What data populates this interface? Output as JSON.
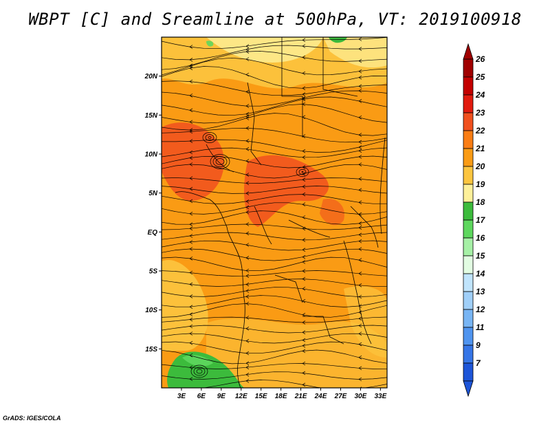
{
  "title": "WBPT [C] and Sreamline at 500hPa, VT: 2019100918",
  "credit": "GrADS: IGES/COLA",
  "map": {
    "lon_range": [
      0,
      34
    ],
    "lat_range": [
      -20,
      25
    ],
    "lon_ticks": [
      {
        "value": 3,
        "label": "3E"
      },
      {
        "value": 6,
        "label": "6E"
      },
      {
        "value": 9,
        "label": "9E"
      },
      {
        "value": 12,
        "label": "12E"
      },
      {
        "value": 15,
        "label": "15E"
      },
      {
        "value": 18,
        "label": "18E"
      },
      {
        "value": 21,
        "label": "21E"
      },
      {
        "value": 24,
        "label": "24E"
      },
      {
        "value": 27,
        "label": "27E"
      },
      {
        "value": 30,
        "label": "30E"
      },
      {
        "value": 33,
        "label": "33E"
      }
    ],
    "lat_ticks": [
      {
        "value": 20,
        "label": "20N"
      },
      {
        "value": 15,
        "label": "15N"
      },
      {
        "value": 10,
        "label": "10N"
      },
      {
        "value": 5,
        "label": "5N"
      },
      {
        "value": 0,
        "label": "EQ"
      },
      {
        "value": -5,
        "label": "5S"
      },
      {
        "value": -10,
        "label": "10S"
      },
      {
        "value": -15,
        "label": "15S"
      }
    ]
  },
  "colorbar": {
    "levels": [
      {
        "label": "26",
        "color": "#a00000"
      },
      {
        "label": "25",
        "color": "#c30000"
      },
      {
        "label": "24",
        "color": "#e11a0e"
      },
      {
        "label": "23",
        "color": "#f0501e"
      },
      {
        "label": "22",
        "color": "#fa7d14"
      },
      {
        "label": "21",
        "color": "#fa9b14"
      },
      {
        "label": "20",
        "color": "#fcc53f"
      },
      {
        "label": "19",
        "color": "#fdf09a"
      },
      {
        "label": "18",
        "color": "#3cbb3c"
      },
      {
        "label": "17",
        "color": "#5ed75e"
      },
      {
        "label": "16",
        "color": "#a6f0a6"
      },
      {
        "label": "15",
        "color": "#e2fce2"
      },
      {
        "label": "14",
        "color": "#c0e4fc"
      },
      {
        "label": "13",
        "color": "#a0cff8"
      },
      {
        "label": "12",
        "color": "#78b5f4"
      },
      {
        "label": "11",
        "color": "#4f94ef"
      },
      {
        "label": "9",
        "color": "#3575e6"
      },
      {
        "label": "7",
        "color": "#1d55d8"
      }
    ]
  },
  "colors": {
    "base_orange": "#fa9b14",
    "warm_orange": "#f0501e",
    "light_yellow": "#fdf09a",
    "pale_orange": "#fcc53f",
    "green": "#3cbb3c",
    "light_green": "#5ed75e",
    "streamline": "#000000",
    "border": "#000000"
  }
}
